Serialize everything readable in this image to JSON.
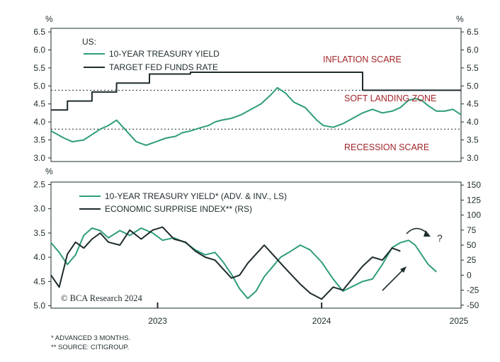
{
  "chart_data": [
    {
      "type": "line",
      "panel": "top",
      "title": "US:",
      "y_unit_left": "%",
      "y_unit_right": "%",
      "ylim": [
        2.9,
        6.6
      ],
      "yticks": [
        "6.5",
        "6.0",
        "5.5",
        "5.0",
        "4.5",
        "4.0",
        "3.5",
        "3.0"
      ],
      "ytick_values": [
        6.5,
        6.0,
        5.5,
        5.0,
        4.5,
        4.0,
        3.5,
        3.0
      ],
      "xlim": [
        2022.2,
        2024.7
      ],
      "grid": false,
      "legend_placement": "top-left",
      "series": [
        {
          "name": "10-YEAR TREASURY YIELD",
          "color": "#2e9d7c",
          "x": [
            2022.2,
            2022.28,
            2022.33,
            2022.4,
            2022.45,
            2022.5,
            2022.55,
            2022.6,
            2022.66,
            2022.72,
            2022.78,
            2022.84,
            2022.9,
            2022.96,
            2023.0,
            2023.05,
            2023.12,
            2023.16,
            2023.2,
            2023.24,
            2023.3,
            2023.36,
            2023.42,
            2023.48,
            2023.54,
            2023.58,
            2023.63,
            2023.68,
            2023.75,
            2023.82,
            2023.86,
            2023.92,
            2023.98,
            2024.04,
            2024.1,
            2024.16,
            2024.22,
            2024.28,
            2024.33,
            2024.38,
            2024.42,
            2024.46,
            2024.5,
            2024.55,
            2024.6,
            2024.65,
            2024.7
          ],
          "values": [
            3.75,
            3.55,
            3.45,
            3.5,
            3.65,
            3.8,
            3.9,
            4.05,
            3.75,
            3.45,
            3.35,
            3.45,
            3.55,
            3.6,
            3.7,
            3.75,
            3.85,
            3.9,
            4.0,
            4.05,
            4.1,
            4.2,
            4.35,
            4.5,
            4.75,
            4.95,
            4.8,
            4.55,
            4.4,
            4.05,
            3.9,
            3.85,
            3.95,
            4.1,
            4.25,
            4.35,
            4.25,
            4.3,
            4.4,
            4.6,
            4.65,
            4.6,
            4.45,
            4.3,
            4.3,
            4.35,
            4.2
          ]
        },
        {
          "name": "TARGET FED FUNDS RATE",
          "color": "#1e2b2d",
          "x": [
            2022.2,
            2022.3,
            2022.3,
            2022.45,
            2022.45,
            2022.6,
            2022.6,
            2022.8,
            2022.8,
            2023.05,
            2023.05,
            2024.1,
            2024.1,
            2024.7
          ],
          "values": [
            4.33,
            4.33,
            4.58,
            4.58,
            4.83,
            4.83,
            5.08,
            5.08,
            5.33,
            5.33,
            5.38,
            5.38,
            4.88,
            4.88
          ]
        }
      ],
      "annotations": [
        "INFLATION SCARE",
        "SOFT LANDING ZONE",
        "RECESSION SCARE"
      ],
      "reference_lines": [
        4.88,
        3.8
      ]
    },
    {
      "type": "line",
      "panel": "bottom",
      "y_unit_left": "%",
      "yticks_left": [
        "2.5",
        "3.0",
        "3.5",
        "4.0",
        "4.5",
        "5.0"
      ],
      "ytick_values_left": [
        2.5,
        3.0,
        3.5,
        4.0,
        4.5,
        5.0
      ],
      "ylim_left": [
        2.45,
        5.05
      ],
      "yticks_right": [
        "150",
        "125",
        "100",
        "75",
        "50",
        "25",
        "0",
        "-25",
        "-50"
      ],
      "ytick_values_right": [
        150,
        125,
        100,
        75,
        50,
        25,
        0,
        -25,
        -50
      ],
      "ylim_right": [
        -55,
        155
      ],
      "xlim": [
        2022.2,
        2024.7
      ],
      "xticks": [
        "2023",
        "2024",
        "2025"
      ],
      "xtick_positions": [
        2022.85,
        2023.85,
        2024.85
      ],
      "legend_placement": "top-left",
      "series": [
        {
          "name": "10-YEAR TREASURY YIELD* (ADV. & INV., LS)",
          "axis": "left",
          "color": "#2e9d7c",
          "x": [
            2022.2,
            2022.25,
            2022.3,
            2022.35,
            2022.4,
            2022.45,
            2022.5,
            2022.55,
            2022.62,
            2022.68,
            2022.75,
            2022.82,
            2022.88,
            2022.95,
            2023.02,
            2023.08,
            2023.14,
            2023.2,
            2023.25,
            2023.3,
            2023.35,
            2023.4,
            2023.45,
            2023.5,
            2023.55,
            2023.6,
            2023.65,
            2023.72,
            2023.78,
            2023.85,
            2023.92,
            2023.98,
            2024.04,
            2024.1,
            2024.16,
            2024.22,
            2024.28,
            2024.33,
            2024.38,
            2024.42,
            2024.46,
            2024.5,
            2024.55
          ],
          "values": [
            3.7,
            3.9,
            4.15,
            3.95,
            3.55,
            3.4,
            3.45,
            3.6,
            3.45,
            3.55,
            3.4,
            3.5,
            3.65,
            3.6,
            3.7,
            3.85,
            3.95,
            3.9,
            4.1,
            4.35,
            4.65,
            4.85,
            4.7,
            4.4,
            4.2,
            4.0,
            3.9,
            3.75,
            3.85,
            4.1,
            4.45,
            4.7,
            4.6,
            4.5,
            4.45,
            4.15,
            3.8,
            3.7,
            3.65,
            3.75,
            3.95,
            4.15,
            4.3
          ]
        },
        {
          "name": "ECONOMIC SURPRISE INDEX** (RS)",
          "axis": "right",
          "color": "#1e2b2d",
          "x": [
            2022.2,
            2022.25,
            2022.3,
            2022.35,
            2022.4,
            2022.45,
            2022.5,
            2022.55,
            2022.62,
            2022.68,
            2022.75,
            2022.82,
            2022.88,
            2022.95,
            2023.02,
            2023.08,
            2023.14,
            2023.2,
            2023.25,
            2023.3,
            2023.35,
            2023.4,
            2023.45,
            2023.5,
            2023.55,
            2023.6,
            2023.65,
            2023.72,
            2023.78,
            2023.85,
            2023.92,
            2023.98,
            2024.04,
            2024.1,
            2024.16,
            2024.22,
            2024.28,
            2024.33
          ],
          "values": [
            0,
            -20,
            35,
            55,
            45,
            60,
            70,
            55,
            50,
            75,
            60,
            75,
            80,
            60,
            55,
            40,
            30,
            25,
            10,
            -5,
            0,
            20,
            35,
            50,
            35,
            20,
            5,
            -15,
            -30,
            -40,
            -20,
            -25,
            -5,
            15,
            30,
            25,
            45,
            40
          ]
        }
      ],
      "annotations": [
        "?"
      ],
      "credit": "© BCA Research 2024"
    }
  ],
  "footnotes": {
    "line1": "* ADVANCED 3 MONTHS.",
    "line2": "** SOURCE: CITIGROUP."
  }
}
